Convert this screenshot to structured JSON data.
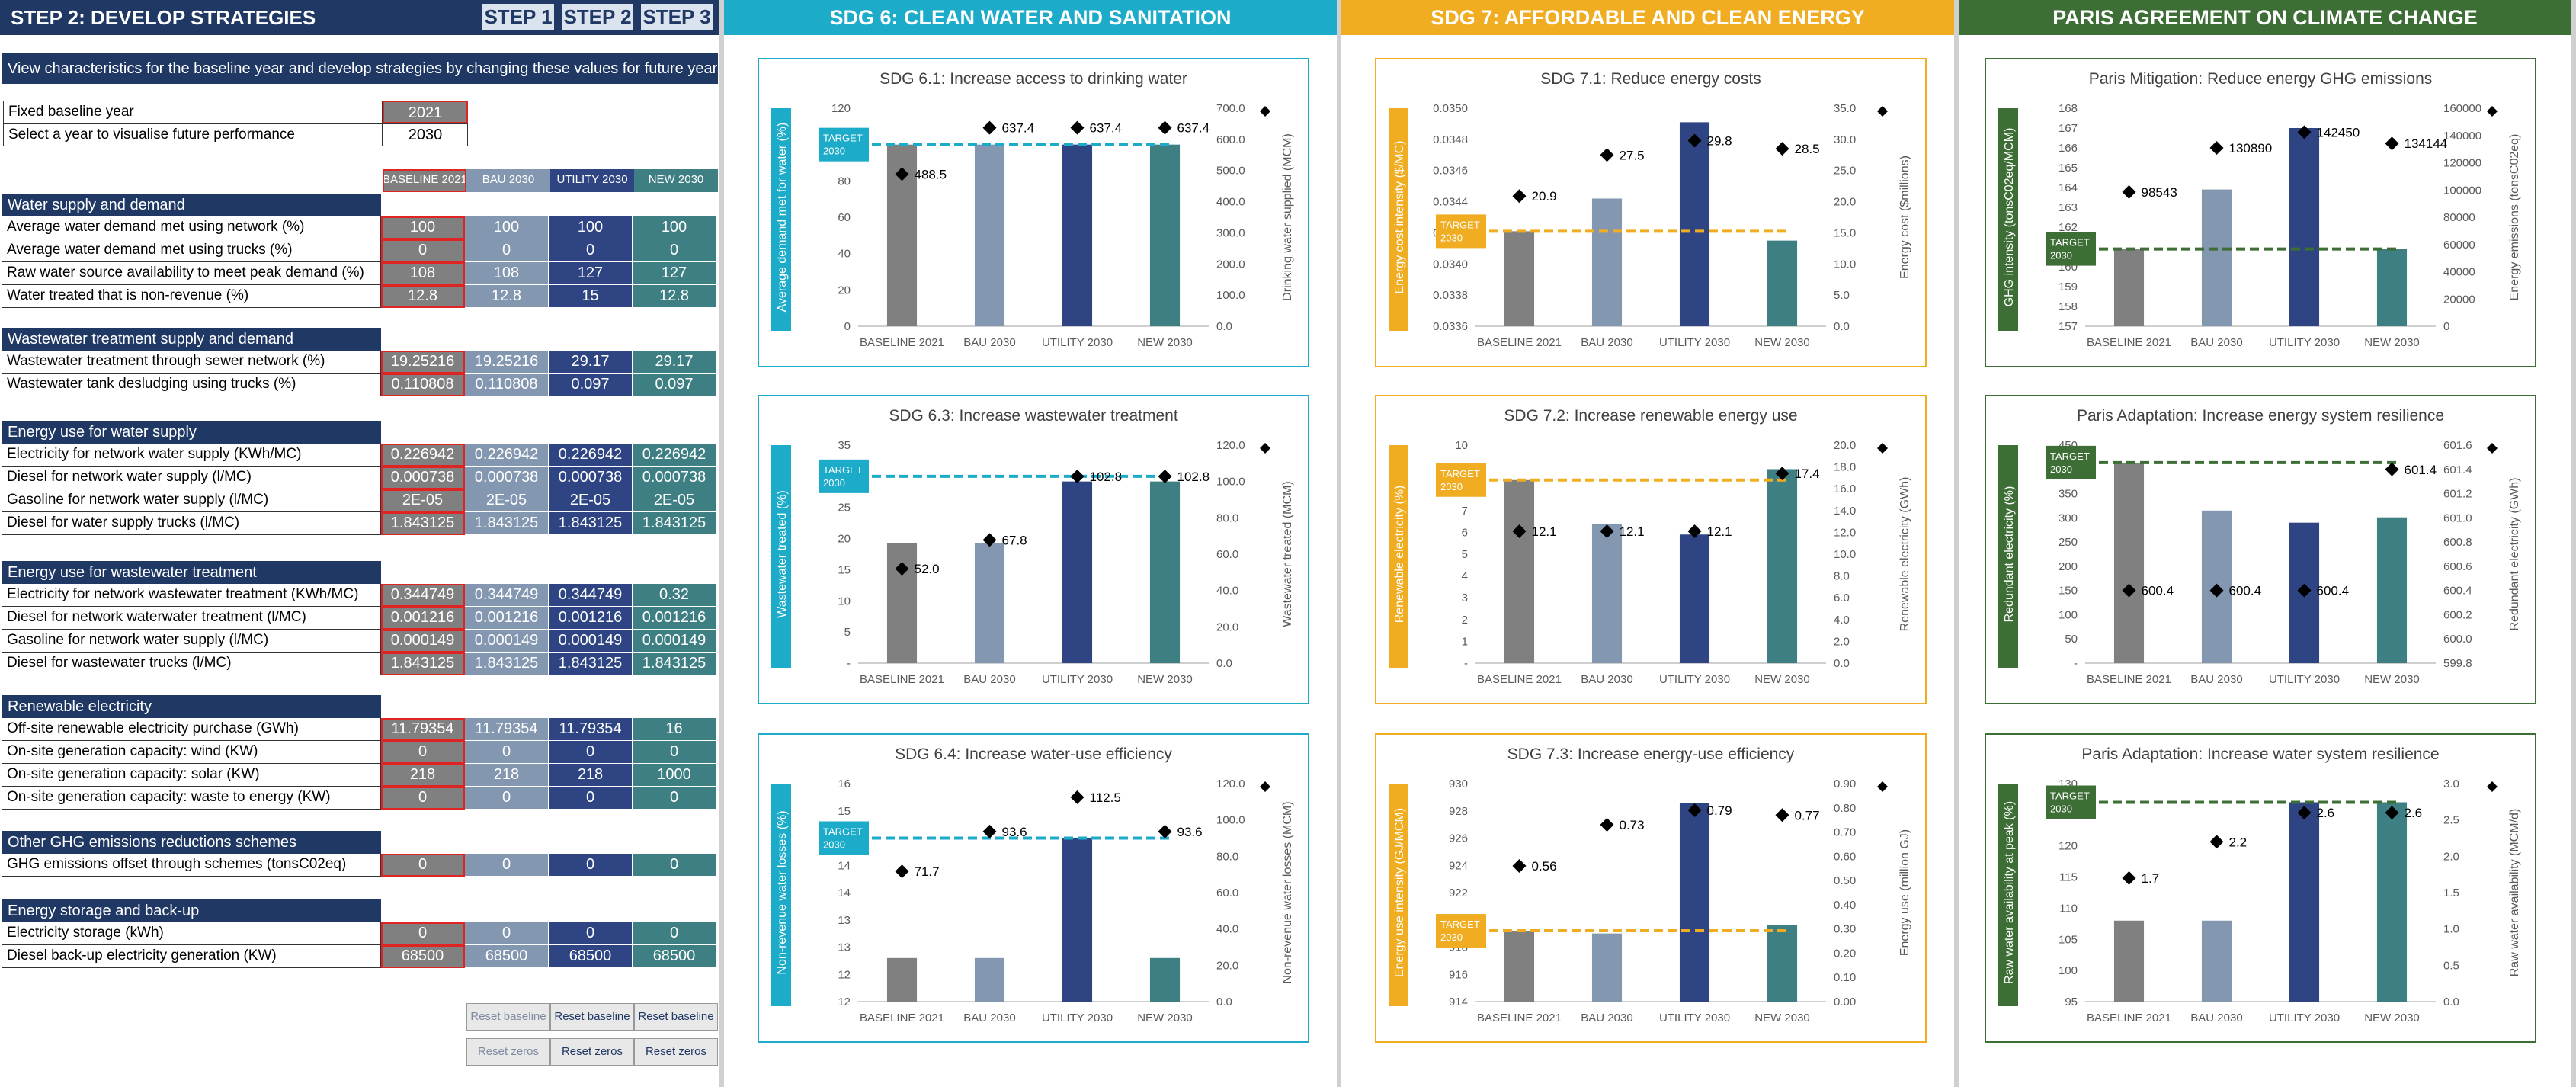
{
  "left": {
    "title": "STEP 2: DEVELOP STRATEGIES",
    "steps": [
      "STEP 1",
      "STEP 2",
      "STEP 3"
    ],
    "intro": "View characteristics for the baseline year and develop strategies by changing these values for future years",
    "fixed_baseline_label": "Fixed baseline year",
    "fixed_baseline_value": "2021",
    "select_year_label": "Select a year to visualise future performance",
    "select_year_value": "2030",
    "col_headers": [
      "BASELINE 2021",
      "BAU 2030",
      "UTILITY 2030",
      "NEW 2030"
    ],
    "sections": [
      {
        "title": "Water supply and demand",
        "rows": [
          {
            "label": "Average water demand met using network (%)",
            "values": [
              "100",
              "100",
              "100",
              "100"
            ]
          },
          {
            "label": "Average water demand met using trucks (%)",
            "values": [
              "0",
              "0",
              "0",
              "0"
            ]
          },
          {
            "label": "Raw water source availability to meet peak demand (%)",
            "values": [
              "108",
              "108",
              "127",
              "127"
            ]
          },
          {
            "label": "Water treated that is non-revenue (%)",
            "values": [
              "12.8",
              "12.8",
              "15",
              "12.8"
            ]
          }
        ]
      },
      {
        "title": "Wastewater treatment supply and demand",
        "rows": [
          {
            "label": "Wastewater treatment through sewer network (%)",
            "values": [
              "19.25216",
              "19.25216",
              "29.17",
              "29.17"
            ]
          },
          {
            "label": "Wastewater tank desludging using trucks  (%)",
            "values": [
              "0.110808",
              "0.110808",
              "0.097",
              "0.097"
            ]
          }
        ]
      },
      {
        "title": "Energy use for water supply",
        "rows": [
          {
            "label": "Electricity for network water supply (KWh/MC)",
            "values": [
              "0.226942",
              "0.226942",
              "0.226942",
              "0.226942"
            ]
          },
          {
            "label": "Diesel for network water supply (l/MC)",
            "values": [
              "0.000738",
              "0.000738",
              "0.000738",
              "0.000738"
            ]
          },
          {
            "label": "Gasoline for network water supply (l/MC)",
            "values": [
              "2E-05",
              "2E-05",
              "2E-05",
              "2E-05"
            ]
          },
          {
            "label": "Diesel for water supply trucks (l/MC)",
            "values": [
              "1.843125",
              "1.843125",
              "1.843125",
              "1.843125"
            ]
          }
        ]
      },
      {
        "title": "Energy use for wastewater treatment",
        "rows": [
          {
            "label": "Electricity for network wastewater treatment (KWh/MC)",
            "values": [
              "0.344749",
              "0.344749",
              "0.344749",
              "0.32"
            ]
          },
          {
            "label": "Diesel for network waterwater treatment (l/MC)",
            "values": [
              "0.001216",
              "0.001216",
              "0.001216",
              "0.001216"
            ]
          },
          {
            "label": "Gasoline for network water supply (l/MC)",
            "values": [
              "0.000149",
              "0.000149",
              "0.000149",
              "0.000149"
            ]
          },
          {
            "label": "Diesel for wastewater trucks (l/MC)",
            "values": [
              "1.843125",
              "1.843125",
              "1.843125",
              "1.843125"
            ]
          }
        ]
      },
      {
        "title": "Renewable electricity",
        "rows": [
          {
            "label": "Off-site renewable electricity purchase (GWh)",
            "values": [
              "11.79354",
              "11.79354",
              "11.79354",
              "16"
            ]
          },
          {
            "label": "On-site generation capacity: wind (KW)",
            "values": [
              "0",
              "0",
              "0",
              "0"
            ]
          },
          {
            "label": "On-site generation capacity: solar (KW)",
            "values": [
              "218",
              "218",
              "218",
              "1000"
            ]
          },
          {
            "label": "On-site generation capacity: waste to energy (KW)",
            "values": [
              "0",
              "0",
              "0",
              "0"
            ]
          }
        ]
      },
      {
        "title": "Other GHG emissions reductions schemes",
        "rows": [
          {
            "label": "GHG emissions offset through schemes (tonsC02eq)",
            "values": [
              "0",
              "0",
              "0",
              "0"
            ]
          }
        ]
      },
      {
        "title": "Energy storage and back-up",
        "rows": [
          {
            "label": "Electricity storage (kWh)",
            "values": [
              "0",
              "0",
              "0",
              "0"
            ]
          },
          {
            "label": "Diesel back-up electricity generation (KW)",
            "values": [
              "68500",
              "68500",
              "68500",
              "68500"
            ]
          }
        ]
      }
    ],
    "reset_baseline": "Reset baseline",
    "reset_zeros": "Reset zeros"
  },
  "colors": {
    "navy": "#1f3864",
    "baseline": "#808080",
    "bau": "#8497b0",
    "utility": "#2f4583",
    "new": "#3e7f83",
    "sdg6": "#1cabc9",
    "sdg7": "#f0ad22",
    "paris": "#3d6e35"
  },
  "panels": [
    {
      "header": "SDG 6: CLEAN WATER AND SANITATION",
      "accent": "#1cabc9"
    },
    {
      "header": "SDG 7: AFFORDABLE AND CLEAN ENERGY",
      "accent": "#f0ad22"
    },
    {
      "header": "PARIS AGREEMENT ON CLIMATE CHANGE",
      "accent": "#3d6e35"
    }
  ],
  "chart_data": [
    {
      "type": "bar",
      "title": "SDG 6.1: Increase access to drinking water",
      "categories": [
        "BASELINE 2021",
        "BAU 2030",
        "UTILITY 2030",
        "NEW 2030"
      ],
      "ylabel": "Average demand met for water (%)",
      "ylim": [
        0,
        120
      ],
      "yticks": [
        "0",
        "20",
        "40",
        "60",
        "80",
        "100",
        "120"
      ],
      "y2label": "Drinking water supplied (MCM)",
      "y2lim": [
        0,
        700
      ],
      "y2ticks": [
        "0.0",
        "100.0",
        "200.0",
        "300.0",
        "400.0",
        "500.0",
        "600.0",
        "700.0"
      ],
      "bars": [
        100,
        100,
        100,
        100
      ],
      "points": [
        488.5,
        637.4,
        637.4,
        637.4
      ],
      "point_labels": [
        "488.5",
        "637.4",
        "637.4",
        "637.4"
      ],
      "target": 100,
      "target_label": [
        "TARGET",
        "2030"
      ]
    },
    {
      "type": "bar",
      "title": "SDG 6.3: Increase wastewater treatment",
      "categories": [
        "BASELINE 2021",
        "BAU 2030",
        "UTILITY 2030",
        "NEW 2030"
      ],
      "ylabel": "Wastewater treated (%)",
      "ylim": [
        0,
        35
      ],
      "yticks": [
        "-",
        "5",
        "10",
        "15",
        "20",
        "25",
        "30",
        "35"
      ],
      "y2label": "Wastewater treated (MCM)",
      "y2lim": [
        0,
        120
      ],
      "y2ticks": [
        "0.0",
        "20.0",
        "40.0",
        "60.0",
        "80.0",
        "100.0",
        "120.0"
      ],
      "bars": [
        19.25,
        19.25,
        29.17,
        29.17
      ],
      "points": [
        52.0,
        67.8,
        102.8,
        102.8
      ],
      "point_labels": [
        "52.0",
        "67.8",
        "102.8",
        "102.8"
      ],
      "target": 30,
      "target_label": [
        "TARGET",
        "2030"
      ]
    },
    {
      "type": "bar",
      "title": "SDG 6.4: Increase water-use efficiency",
      "categories": [
        "BASELINE 2021",
        "BAU 2030",
        "UTILITY 2030",
        "NEW 2030"
      ],
      "ylabel": "Non-revenue water losses (%)",
      "ylim": [
        12,
        16
      ],
      "yticks": [
        "12",
        "12",
        "13",
        "13",
        "14",
        "14",
        "15",
        "15",
        "16"
      ],
      "y2label": "Non-revenue water losses (MCM)",
      "y2lim": [
        0,
        120
      ],
      "y2ticks": [
        "0.0",
        "20.0",
        "40.0",
        "60.0",
        "80.0",
        "100.0",
        "120.0"
      ],
      "bars": [
        12.8,
        12.8,
        15,
        12.8
      ],
      "points": [
        71.7,
        93.6,
        112.5,
        93.6
      ],
      "point_labels": [
        "71.7",
        "93.6",
        "112.5",
        "93.6"
      ],
      "target": 15,
      "target_label": [
        "TARGET",
        "2030"
      ]
    },
    {
      "type": "bar",
      "title": "SDG 7.1: Reduce energy costs",
      "categories": [
        "BASELINE 2021",
        "BAU 2030",
        "UTILITY 2030",
        "NEW 2030"
      ],
      "ylabel": "Energy cost intensity ($/MC)",
      "ylim": [
        0.0336,
        0.035
      ],
      "yticks": [
        "0.0336",
        "0.0338",
        "0.0340",
        "0.0342",
        "0.0344",
        "0.0346",
        "0.0348",
        "0.0350"
      ],
      "y2label": "Energy cost ($millions)",
      "y2lim": [
        0,
        35
      ],
      "y2ticks": [
        "0.0",
        "5.0",
        "10.0",
        "15.0",
        "20.0",
        "25.0",
        "30.0",
        "35.0"
      ],
      "bars": [
        0.03421,
        0.03442,
        0.03491,
        0.03415
      ],
      "points": [
        20.9,
        27.5,
        29.8,
        28.5
      ],
      "point_labels": [
        "20.9",
        "27.5",
        "29.8",
        "28.5"
      ],
      "target": 0.03421,
      "target_label": [
        "TARGET",
        "2030"
      ]
    },
    {
      "type": "bar",
      "title": "SDG 7.2: Increase renewable energy use",
      "categories": [
        "BASELINE 2021",
        "BAU 2030",
        "UTILITY 2030",
        "NEW 2030"
      ],
      "ylabel": "Renewable electricity (%)",
      "ylim": [
        0,
        10
      ],
      "yticks": [
        "-",
        "1",
        "2",
        "3",
        "4",
        "5",
        "6",
        "7",
        "8",
        "9",
        "10"
      ],
      "y2label": "Renewable electricity (GWh)",
      "y2lim": [
        0,
        20
      ],
      "y2ticks": [
        "0.0",
        "2.0",
        "4.0",
        "6.0",
        "8.0",
        "10.0",
        "12.0",
        "14.0",
        "16.0",
        "18.0",
        "20.0"
      ],
      "bars": [
        8.4,
        6.4,
        5.9,
        8.9
      ],
      "points": [
        12.1,
        12.1,
        12.1,
        17.4
      ],
      "point_labels": [
        "12.1",
        "12.1",
        "12.1",
        "17.4"
      ],
      "target": 8.4,
      "target_label": [
        "TARGET",
        "2030"
      ]
    },
    {
      "type": "bar",
      "title": "SDG 7.3: Increase energy-use efficiency",
      "categories": [
        "BASELINE 2021",
        "BAU 2030",
        "UTILITY 2030",
        "NEW 2030"
      ],
      "ylabel": "Energy use intensity (GJ/MCM)",
      "ylim": [
        914,
        930
      ],
      "yticks": [
        "914",
        "916",
        "918",
        "920",
        "922",
        "924",
        "926",
        "928",
        "930"
      ],
      "y2label": "Energy use (million GJ)",
      "y2lim": [
        0,
        0.9
      ],
      "y2ticks": [
        "0.00",
        "0.10",
        "0.20",
        "0.30",
        "0.40",
        "0.50",
        "0.60",
        "0.70",
        "0.80",
        "0.90"
      ],
      "bars": [
        919.2,
        919.0,
        928.6,
        919.6
      ],
      "points": [
        0.56,
        0.73,
        0.79,
        0.77
      ],
      "point_labels": [
        "0.56",
        "0.73",
        "0.79",
        "0.77"
      ],
      "target": 919.2,
      "target_label": [
        "TARGET",
        "2030"
      ]
    },
    {
      "type": "bar",
      "title": "Paris Mitigation: Reduce energy GHG emissions",
      "categories": [
        "BASELINE 2021",
        "BAU 2030",
        "UTILITY 2030",
        "NEW 2030"
      ],
      "ylabel": "GHG intensity (tonsC02eq/MCM)",
      "ylim": [
        157,
        168
      ],
      "yticks": [
        "157",
        "158",
        "159",
        "160",
        "161",
        "162",
        "163",
        "164",
        "165",
        "166",
        "167",
        "168"
      ],
      "y2label": "Energy emissions (tonsC02eq)",
      "y2lim": [
        0,
        160000
      ],
      "y2ticks": [
        "0",
        "20000",
        "40000",
        "60000",
        "80000",
        "100000",
        "120000",
        "140000",
        "160000"
      ],
      "bars": [
        160.9,
        163.9,
        167.0,
        160.9
      ],
      "points": [
        98543,
        130890,
        142450,
        134144
      ],
      "point_labels": [
        "98543",
        "130890",
        "142450",
        "134144"
      ],
      "target": 160.9,
      "target_label": [
        "TARGET",
        "2030"
      ]
    },
    {
      "type": "bar",
      "title": "Paris Adaptation: Increase energy system resilience",
      "categories": [
        "BASELINE 2021",
        "BAU 2030",
        "UTILITY 2030",
        "NEW 2030"
      ],
      "ylabel": "Redundant electricity (%)",
      "ylim": [
        0,
        450
      ],
      "yticks": [
        "-",
        "50",
        "100",
        "150",
        "200",
        "250",
        "300",
        "350",
        "400",
        "450"
      ],
      "y2label": "Redundant electricity (GWh)",
      "y2lim": [
        599.8,
        601.6
      ],
      "y2ticks": [
        "599.8",
        "600.0",
        "600.2",
        "600.4",
        "600.6",
        "600.8",
        "601.0",
        "601.2",
        "601.4",
        "601.6"
      ],
      "bars": [
        414,
        315,
        290,
        301
      ],
      "points": [
        600.4,
        600.4,
        600.4,
        601.4
      ],
      "point_labels": [
        "600.4",
        "600.4",
        "600.4",
        "601.4"
      ],
      "target": 414,
      "target_label": [
        "TARGET",
        "2030"
      ]
    },
    {
      "type": "bar",
      "title": "Paris Adaptation: Increase water system resilience",
      "categories": [
        "BASELINE 2021",
        "BAU 2030",
        "UTILITY 2030",
        "NEW 2030"
      ],
      "ylabel": "Raw water availability at peak (%)",
      "ylim": [
        95,
        130
      ],
      "yticks": [
        "95",
        "100",
        "105",
        "110",
        "115",
        "120",
        "125",
        "130"
      ],
      "y2label": "Raw water availability (MCM/d)",
      "y2lim": [
        0,
        3
      ],
      "y2ticks": [
        "0.0",
        "0.5",
        "1.0",
        "1.5",
        "2.0",
        "2.5",
        "3.0"
      ],
      "bars": [
        108,
        108,
        127,
        127
      ],
      "points": [
        1.7,
        2.2,
        2.6,
        2.6
      ],
      "point_labels": [
        "1.7",
        "2.2",
        "2.6",
        "2.6"
      ],
      "target": 127,
      "target_label": [
        "TARGET",
        "2030"
      ]
    }
  ]
}
